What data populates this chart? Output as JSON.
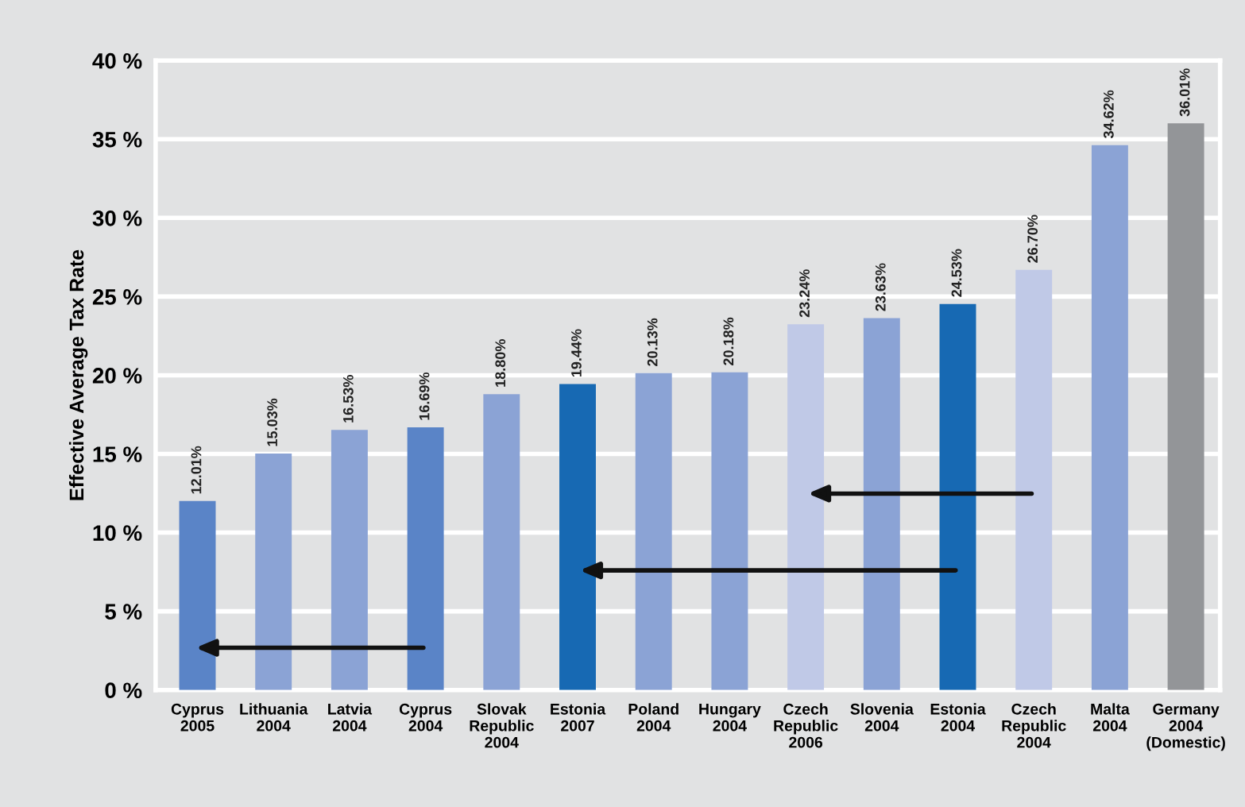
{
  "chart_data": {
    "type": "bar",
    "ylabel": "Effective Average Tax Rate",
    "categories": [
      "Cyprus\n2005",
      "Lithuania\n2004",
      "Latvia\n2004",
      "Cyprus\n2004",
      "Slovak\nRepublic\n2004",
      "Estonia\n2007",
      "Poland\n2004",
      "Hungary\n2004",
      "Czech\nRepublic\n2006",
      "Slovenia\n2004",
      "Estonia\n2004",
      "Czech\nRepublic\n2004",
      "Malta\n2004",
      "Germany\n2004\n(Domestic)"
    ],
    "values": [
      12.01,
      15.03,
      16.53,
      16.69,
      18.8,
      19.44,
      20.13,
      20.18,
      23.24,
      23.63,
      24.53,
      26.7,
      34.62,
      36.01
    ],
    "value_labels": [
      "12.01%",
      "15.03%",
      "16.53%",
      "16.69%",
      "18.80%",
      "19.44%",
      "20.13%",
      "20.18%",
      "23.24%",
      "23.63%",
      "24.53%",
      "26.70%",
      "34.62%",
      "36.01%"
    ],
    "colors": [
      "#5a84c7",
      "#8ba3d5",
      "#8ba3d5",
      "#5a84c7",
      "#8ba3d5",
      "#1769b3",
      "#8ba3d5",
      "#8ba3d5",
      "#c0c9e7",
      "#8ba3d5",
      "#1769b3",
      "#c0c9e7",
      "#8ba3d5",
      "#939598"
    ],
    "ylim": [
      0,
      40
    ],
    "yticks": [
      {
        "value": 0,
        "label": "0 %"
      },
      {
        "value": 5,
        "label": "5 %"
      },
      {
        "value": 10,
        "label": "10 %"
      },
      {
        "value": 15,
        "label": "15 %"
      },
      {
        "value": 20,
        "label": "20 %"
      },
      {
        "value": 25,
        "label": "25 %"
      },
      {
        "value": 30,
        "label": "30 %"
      },
      {
        "value": 35,
        "label": "35 %"
      },
      {
        "value": 40,
        "label": "40 %"
      }
    ],
    "grid": "y",
    "legend": false
  }
}
